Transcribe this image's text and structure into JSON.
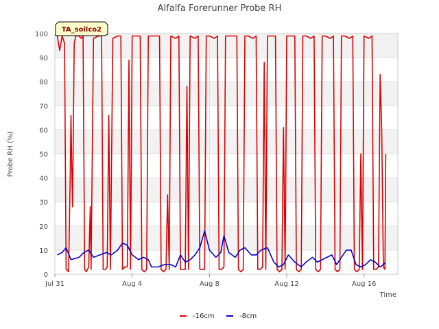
{
  "chart_data": {
    "type": "line",
    "title": "Alfalfa Forerunner Probe RH",
    "site_label": "TA_soilco2",
    "xlabel": "Time",
    "ylabel": "Probe RH (%)",
    "ylim": [
      0,
      100
    ],
    "xlim": [
      "2023-07-31",
      "2023-08-17T18:00"
    ],
    "y_ticks": [
      0,
      10,
      20,
      30,
      40,
      50,
      60,
      70,
      80,
      90,
      100
    ],
    "x_ticks": [
      {
        "date": "2023-07-31",
        "label": "Jul 31"
      },
      {
        "date": "2023-08-04",
        "label": "Aug 4"
      },
      {
        "date": "2023-08-08",
        "label": "Aug 8"
      },
      {
        "date": "2023-08-12",
        "label": "Aug 12"
      },
      {
        "date": "2023-08-16",
        "label": "Aug 16"
      }
    ],
    "grid": true,
    "band_background": true,
    "legend_position": "bottom",
    "series": [
      {
        "name": "-16cm",
        "color": "#dd0000",
        "points": [
          [
            "2023-07-31T03:00",
            99
          ],
          [
            "2023-07-31T06:00",
            93
          ],
          [
            "2023-07-31T09:00",
            99
          ],
          [
            "2023-07-31T12:00",
            96
          ],
          [
            "2023-07-31T14:00",
            2
          ],
          [
            "2023-07-31T17:00",
            1
          ],
          [
            "2023-07-31T19:00",
            40
          ],
          [
            "2023-07-31T20:00",
            66
          ],
          [
            "2023-07-31T21:00",
            45
          ],
          [
            "2023-07-31T22:00",
            28
          ],
          [
            "2023-08-01T00:00",
            96
          ],
          [
            "2023-08-01T02:00",
            99
          ],
          [
            "2023-08-01T06:00",
            99
          ],
          [
            "2023-08-01T09:00",
            98
          ],
          [
            "2023-08-01T11:00",
            99
          ],
          [
            "2023-08-01T13:00",
            2
          ],
          [
            "2023-08-01T15:00",
            1
          ],
          [
            "2023-08-01T18:00",
            3
          ],
          [
            "2023-08-01T20:00",
            28
          ],
          [
            "2023-08-01T21:00",
            2
          ],
          [
            "2023-08-02T00:00",
            98
          ],
          [
            "2023-08-02T06:00",
            99
          ],
          [
            "2023-08-02T10:00",
            99
          ],
          [
            "2023-08-02T12:00",
            2
          ],
          [
            "2023-08-02T15:00",
            2
          ],
          [
            "2023-08-02T17:00",
            3
          ],
          [
            "2023-08-02T19:00",
            66
          ],
          [
            "2023-08-02T21:00",
            2
          ],
          [
            "2023-08-03T00:00",
            98
          ],
          [
            "2023-08-03T06:00",
            99
          ],
          [
            "2023-08-03T10:00",
            99
          ],
          [
            "2023-08-03T12:00",
            2
          ],
          [
            "2023-08-03T15:00",
            3
          ],
          [
            "2023-08-03T18:00",
            3
          ],
          [
            "2023-08-03T20:00",
            89
          ],
          [
            "2023-08-03T22:00",
            2
          ],
          [
            "2023-08-04T00:00",
            99
          ],
          [
            "2023-08-04T06:00",
            99
          ],
          [
            "2023-08-04T10:00",
            99
          ],
          [
            "2023-08-04T12:00",
            2
          ],
          [
            "2023-08-04T15:00",
            1
          ],
          [
            "2023-08-04T18:00",
            2
          ],
          [
            "2023-08-04T20:00",
            99
          ],
          [
            "2023-08-05T00:00",
            99
          ],
          [
            "2023-08-05T06:00",
            99
          ],
          [
            "2023-08-05T10:00",
            99
          ],
          [
            "2023-08-05T12:00",
            2
          ],
          [
            "2023-08-05T15:00",
            1
          ],
          [
            "2023-08-05T18:00",
            2
          ],
          [
            "2023-08-05T20:00",
            33
          ],
          [
            "2023-08-05T22:00",
            2
          ],
          [
            "2023-08-06T00:00",
            99
          ],
          [
            "2023-08-06T06:00",
            98
          ],
          [
            "2023-08-06T10:00",
            99
          ],
          [
            "2023-08-06T12:00",
            2
          ],
          [
            "2023-08-06T15:00",
            2
          ],
          [
            "2023-08-06T18:00",
            2
          ],
          [
            "2023-08-06T20:00",
            78
          ],
          [
            "2023-08-06T22:00",
            2
          ],
          [
            "2023-08-07T00:00",
            99
          ],
          [
            "2023-08-07T06:00",
            98
          ],
          [
            "2023-08-07T10:00",
            99
          ],
          [
            "2023-08-07T12:00",
            2
          ],
          [
            "2023-08-07T15:00",
            2
          ],
          [
            "2023-08-07T18:00",
            2
          ],
          [
            "2023-08-07T20:00",
            99
          ],
          [
            "2023-08-08T00:00",
            99
          ],
          [
            "2023-08-08T06:00",
            98
          ],
          [
            "2023-08-08T10:00",
            99
          ],
          [
            "2023-08-08T12:00",
            2
          ],
          [
            "2023-08-08T15:00",
            2
          ],
          [
            "2023-08-08T18:00",
            3
          ],
          [
            "2023-08-08T20:00",
            99
          ],
          [
            "2023-08-09T00:00",
            99
          ],
          [
            "2023-08-09T06:00",
            99
          ],
          [
            "2023-08-09T10:00",
            99
          ],
          [
            "2023-08-09T12:00",
            2
          ],
          [
            "2023-08-09T15:00",
            1
          ],
          [
            "2023-08-09T18:00",
            2
          ],
          [
            "2023-08-09T20:00",
            99
          ],
          [
            "2023-08-10T00:00",
            99
          ],
          [
            "2023-08-10T06:00",
            98
          ],
          [
            "2023-08-10T10:00",
            99
          ],
          [
            "2023-08-10T12:00",
            2
          ],
          [
            "2023-08-10T15:00",
            2
          ],
          [
            "2023-08-10T18:00",
            3
          ],
          [
            "2023-08-10T20:00",
            88
          ],
          [
            "2023-08-10T22:00",
            2
          ],
          [
            "2023-08-11T00:00",
            99
          ],
          [
            "2023-08-11T06:00",
            99
          ],
          [
            "2023-08-11T10:00",
            99
          ],
          [
            "2023-08-11T12:00",
            2
          ],
          [
            "2023-08-11T15:00",
            1
          ],
          [
            "2023-08-11T18:00",
            2
          ],
          [
            "2023-08-11T20:00",
            61
          ],
          [
            "2023-08-11T22:00",
            2
          ],
          [
            "2023-08-12T00:00",
            99
          ],
          [
            "2023-08-12T06:00",
            99
          ],
          [
            "2023-08-12T10:00",
            99
          ],
          [
            "2023-08-12T12:00",
            2
          ],
          [
            "2023-08-12T15:00",
            1
          ],
          [
            "2023-08-12T18:00",
            2
          ],
          [
            "2023-08-12T20:00",
            99
          ],
          [
            "2023-08-13T00:00",
            99
          ],
          [
            "2023-08-13T06:00",
            98
          ],
          [
            "2023-08-13T10:00",
            99
          ],
          [
            "2023-08-13T12:00",
            2
          ],
          [
            "2023-08-13T15:00",
            1
          ],
          [
            "2023-08-13T18:00",
            2
          ],
          [
            "2023-08-13T20:00",
            99
          ],
          [
            "2023-08-14T00:00",
            99
          ],
          [
            "2023-08-14T06:00",
            98
          ],
          [
            "2023-08-14T10:00",
            99
          ],
          [
            "2023-08-14T12:00",
            2
          ],
          [
            "2023-08-14T15:00",
            1
          ],
          [
            "2023-08-14T18:00",
            2
          ],
          [
            "2023-08-14T20:00",
            99
          ],
          [
            "2023-08-15T00:00",
            99
          ],
          [
            "2023-08-15T06:00",
            98
          ],
          [
            "2023-08-15T10:00",
            99
          ],
          [
            "2023-08-15T12:00",
            2
          ],
          [
            "2023-08-15T15:00",
            1
          ],
          [
            "2023-08-15T18:00",
            2
          ],
          [
            "2023-08-15T20:00",
            50
          ],
          [
            "2023-08-15T22:00",
            2
          ],
          [
            "2023-08-16T00:00",
            99
          ],
          [
            "2023-08-16T06:00",
            98
          ],
          [
            "2023-08-16T10:00",
            99
          ],
          [
            "2023-08-16T12:00",
            2
          ],
          [
            "2023-08-16T15:00",
            2
          ],
          [
            "2023-08-16T18:00",
            3
          ],
          [
            "2023-08-16T20:00",
            83
          ],
          [
            "2023-08-16T22:00",
            60
          ],
          [
            "2023-08-17T00:00",
            3
          ],
          [
            "2023-08-17T02:00",
            2
          ],
          [
            "2023-08-17T03:00",
            50
          ]
        ]
      },
      {
        "name": "-8cm",
        "color": "#0000cc",
        "points": [
          [
            "2023-07-31T03:00",
            8
          ],
          [
            "2023-07-31T09:00",
            9
          ],
          [
            "2023-07-31T14:00",
            11
          ],
          [
            "2023-07-31T20:00",
            6
          ],
          [
            "2023-08-01T06:00",
            7
          ],
          [
            "2023-08-01T12:00",
            9
          ],
          [
            "2023-08-01T18:00",
            10
          ],
          [
            "2023-08-02T00:00",
            7
          ],
          [
            "2023-08-02T08:00",
            8
          ],
          [
            "2023-08-02T16:00",
            9
          ],
          [
            "2023-08-02T22:00",
            8
          ],
          [
            "2023-08-03T06:00",
            10
          ],
          [
            "2023-08-03T12:00",
            13
          ],
          [
            "2023-08-03T18:00",
            12
          ],
          [
            "2023-08-04T00:00",
            8
          ],
          [
            "2023-08-04T08:00",
            6
          ],
          [
            "2023-08-04T14:00",
            7
          ],
          [
            "2023-08-04T20:00",
            6
          ],
          [
            "2023-08-05T00:00",
            3
          ],
          [
            "2023-08-05T08:00",
            3
          ],
          [
            "2023-08-05T16:00",
            4
          ],
          [
            "2023-08-06T00:00",
            4
          ],
          [
            "2023-08-06T06:00",
            3
          ],
          [
            "2023-08-06T12:00",
            8
          ],
          [
            "2023-08-06T18:00",
            5
          ],
          [
            "2023-08-07T00:00",
            6
          ],
          [
            "2023-08-07T06:00",
            8
          ],
          [
            "2023-08-07T12:00",
            11
          ],
          [
            "2023-08-07T18:00",
            18
          ],
          [
            "2023-08-08T00:00",
            10
          ],
          [
            "2023-08-08T08:00",
            7
          ],
          [
            "2023-08-08T14:00",
            9
          ],
          [
            "2023-08-08T18:00",
            16
          ],
          [
            "2023-08-09T00:00",
            9
          ],
          [
            "2023-08-09T08:00",
            7
          ],
          [
            "2023-08-09T14:00",
            10
          ],
          [
            "2023-08-09T20:00",
            11
          ],
          [
            "2023-08-10T04:00",
            8
          ],
          [
            "2023-08-10T10:00",
            8
          ],
          [
            "2023-08-10T16:00",
            10
          ],
          [
            "2023-08-11T00:00",
            11
          ],
          [
            "2023-08-11T08:00",
            5
          ],
          [
            "2023-08-11T14:00",
            3
          ],
          [
            "2023-08-11T20:00",
            4
          ],
          [
            "2023-08-12T02:00",
            8
          ],
          [
            "2023-08-12T10:00",
            5
          ],
          [
            "2023-08-12T18:00",
            3
          ],
          [
            "2023-08-13T00:00",
            5
          ],
          [
            "2023-08-13T08:00",
            7
          ],
          [
            "2023-08-13T14:00",
            5
          ],
          [
            "2023-08-13T20:00",
            6
          ],
          [
            "2023-08-14T02:00",
            7
          ],
          [
            "2023-08-14T08:00",
            8
          ],
          [
            "2023-08-14T14:00",
            4
          ],
          [
            "2023-08-14T20:00",
            7
          ],
          [
            "2023-08-15T02:00",
            10
          ],
          [
            "2023-08-15T08:00",
            10
          ],
          [
            "2023-08-15T14:00",
            4
          ],
          [
            "2023-08-15T20:00",
            3
          ],
          [
            "2023-08-16T02:00",
            4
          ],
          [
            "2023-08-16T08:00",
            6
          ],
          [
            "2023-08-16T14:00",
            5
          ],
          [
            "2023-08-16T20:00",
            3
          ],
          [
            "2023-08-17T00:00",
            4
          ],
          [
            "2023-08-17T03:00",
            5
          ]
        ]
      }
    ]
  }
}
